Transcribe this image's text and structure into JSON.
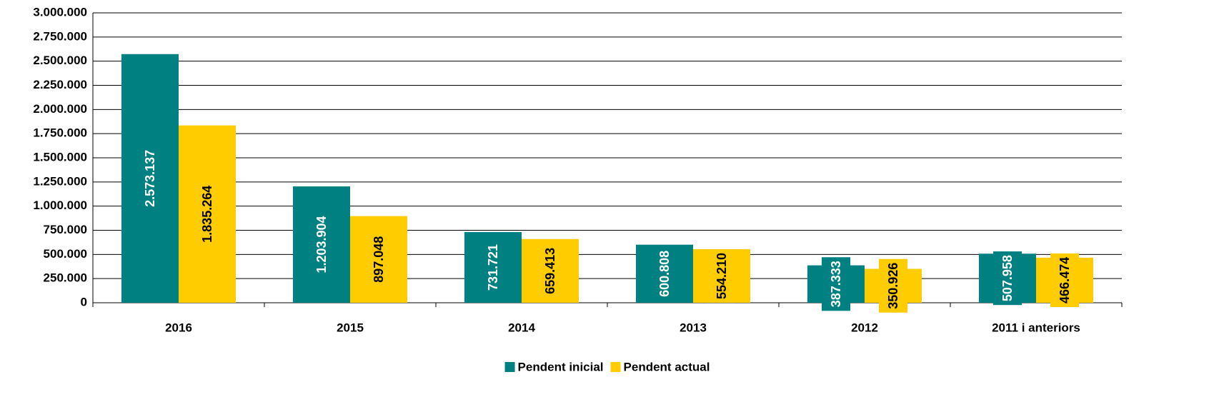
{
  "chart_data": {
    "type": "bar",
    "categories": [
      "2016",
      "2015",
      "2014",
      "2013",
      "2012",
      "2011 i anteriors"
    ],
    "series": [
      {
        "name": "Pendent inicial",
        "color": "#008080",
        "text_color": "#ffffff",
        "values": [
          2573137,
          1203904,
          731721,
          600808,
          387333,
          507958
        ],
        "value_labels": [
          "2.573.137",
          "1.203.904",
          "731.721",
          "600.808",
          "387.333",
          "507.958"
        ]
      },
      {
        "name": "Pendent actual",
        "color": "#ffcc00",
        "text_color": "#000000",
        "values": [
          1835264,
          897048,
          659413,
          554210,
          350926,
          466474
        ],
        "value_labels": [
          "1.835.264",
          "897.048",
          "659.413",
          "554.210",
          "350.926",
          "466.474"
        ]
      }
    ],
    "ylim": [
      0,
      3000000
    ],
    "yticks": [
      0,
      {
        "value": 250000,
        "label": "250.000"
      },
      {
        "value": 500000,
        "label": "500.000"
      },
      {
        "value": 750000,
        "label": "750.000"
      },
      {
        "value": 1000000,
        "label": "1.000.000"
      },
      {
        "value": 1250000,
        "label": "1.250.000"
      },
      {
        "value": 1500000,
        "label": "1.500.000"
      },
      {
        "value": 1750000,
        "label": "1.750.000"
      },
      {
        "value": 2000000,
        "label": "2.000.000"
      },
      {
        "value": 2250000,
        "label": "2.250.000"
      },
      {
        "value": 2500000,
        "label": "2.500.000"
      },
      {
        "value": 2750000,
        "label": "2.750.000"
      },
      {
        "value": 3000000,
        "label": "3.000.000"
      }
    ],
    "grid": true,
    "legend": "bottom"
  }
}
